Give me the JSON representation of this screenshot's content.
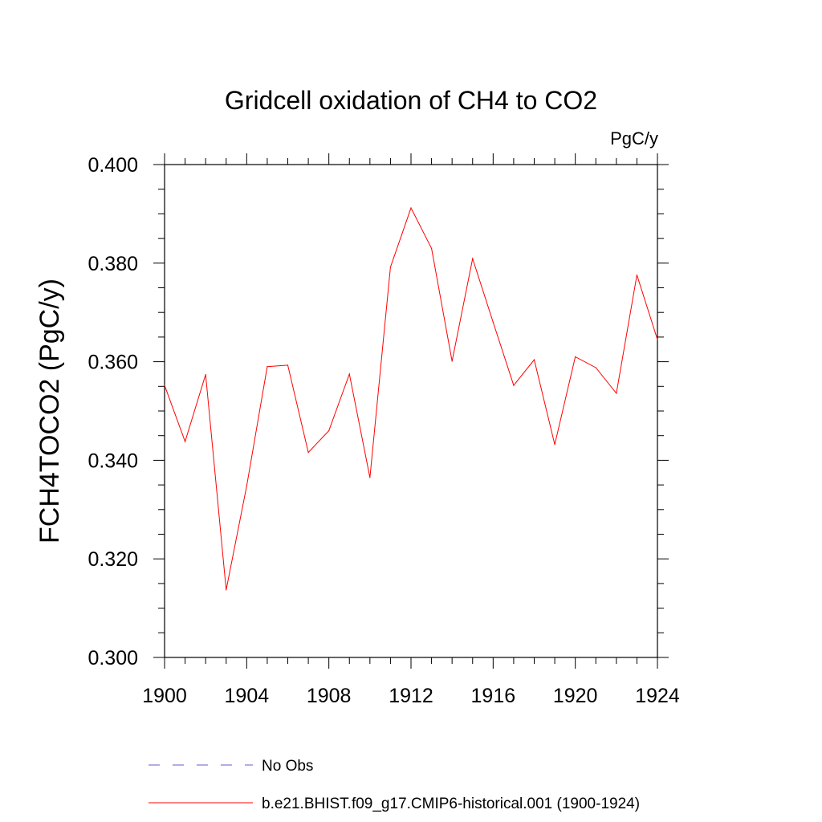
{
  "chart_data": {
    "type": "line",
    "title": "Gridcell oxidation of CH4 to CO2",
    "units": "PgC/y",
    "ylabel": "FCH4TOCO2  (PgC/y)",
    "xlabel": "",
    "xlim": [
      1900,
      1924
    ],
    "ylim": [
      0.3,
      0.4
    ],
    "x_ticks": [
      "1900",
      "1904",
      "1908",
      "1912",
      "1916",
      "1920",
      "1924"
    ],
    "y_ticks": [
      "0.300",
      "0.320",
      "0.340",
      "0.360",
      "0.380",
      "0.400"
    ],
    "grid": false,
    "legend_position": "bottom",
    "series": [
      {
        "name": "b.e21.BHIST.f09_g17.CMIP6-historical.001 (1900-1924)",
        "color": "#ff0000",
        "style": "solid",
        "x": [
          1900,
          1901,
          1902,
          1903,
          1904,
          1905,
          1906,
          1907,
          1908,
          1909,
          1910,
          1911,
          1912,
          1913,
          1914,
          1915,
          1916,
          1917,
          1918,
          1919,
          1920,
          1921,
          1922,
          1923,
          1924
        ],
        "values": [
          0.3552,
          0.3438,
          0.3574,
          0.3137,
          0.3348,
          0.359,
          0.3593,
          0.3416,
          0.346,
          0.3575,
          0.3365,
          0.3792,
          0.3912,
          0.383,
          0.3601,
          0.3809,
          0.368,
          0.3552,
          0.3604,
          0.3432,
          0.361,
          0.3588,
          0.3536,
          0.3776,
          0.3645
        ]
      }
    ],
    "legend": [
      {
        "label": "No Obs",
        "color": "#6a5acd",
        "style": "dashed"
      },
      {
        "label": "b.e21.BHIST.f09_g17.CMIP6-historical.001 (1900-1924)",
        "color": "#ff0000",
        "style": "solid"
      }
    ]
  }
}
